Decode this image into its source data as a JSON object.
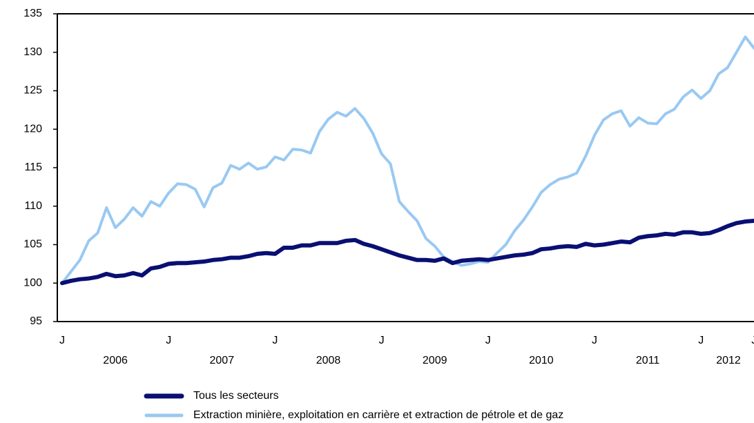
{
  "chart_data": {
    "type": "line",
    "categories": [
      "J",
      null,
      null,
      null,
      null,
      null,
      null,
      null,
      null,
      null,
      null,
      null,
      "J",
      null,
      null,
      null,
      null,
      null,
      null,
      null,
      null,
      null,
      null,
      null,
      "J",
      null,
      null,
      null,
      null,
      null,
      null,
      null,
      null,
      null,
      null,
      null,
      "J",
      null,
      null,
      null,
      null,
      null,
      null,
      null,
      null,
      null,
      null,
      null,
      "J",
      null,
      null,
      null,
      null,
      null,
      null,
      null,
      null,
      null,
      null,
      null,
      "J",
      null,
      null,
      null,
      null,
      null,
      null,
      null,
      null,
      null,
      null,
      null,
      "J",
      null,
      null,
      null,
      null,
      null,
      "J"
    ],
    "year_labels": [
      "2006",
      "2007",
      "2008",
      "2009",
      "2010",
      "2011",
      "2012"
    ],
    "series": [
      {
        "name": "Tous les secteurs",
        "color": "#0a0f73",
        "width": 6,
        "values": [
          100,
          100.3,
          100.5,
          100.6,
          100.8,
          101.2,
          100.9,
          101,
          101.3,
          101,
          101.9,
          102.1,
          102.5,
          102.6,
          102.6,
          102.7,
          102.8,
          103,
          103.1,
          103.3,
          103.3,
          103.5,
          103.8,
          103.9,
          103.8,
          104.6,
          104.6,
          104.9,
          104.9,
          105.2,
          105.2,
          105.2,
          105.5,
          105.6,
          105.1,
          104.8,
          104.4,
          104,
          103.6,
          103.3,
          103,
          103,
          102.9,
          103.2,
          102.6,
          102.9,
          103,
          103.1,
          103,
          103.2,
          103.4,
          103.6,
          103.7,
          103.9,
          104.4,
          104.5,
          104.7,
          104.8,
          104.7,
          105.1,
          104.9,
          105,
          105.2,
          105.4,
          105.3,
          105.9,
          106.1,
          106.2,
          106.4,
          106.3,
          106.6,
          106.6,
          106.4,
          106.5,
          106.9,
          107.4,
          107.8,
          108,
          108.1
        ]
      },
      {
        "name": "Extraction minière, exploitation en carrière et extraction de pétrole et de gaz",
        "color": "#99c9f2",
        "width": 4,
        "values": [
          100,
          101.5,
          103,
          105.5,
          106.5,
          109.8,
          107.2,
          108.3,
          109.8,
          108.7,
          110.6,
          110,
          111.7,
          112.9,
          112.8,
          112.2,
          109.9,
          112.4,
          113,
          115.3,
          114.8,
          115.6,
          114.8,
          115.1,
          116.4,
          116,
          117.4,
          117.3,
          116.9,
          119.7,
          121.3,
          122.2,
          121.7,
          122.7,
          121.4,
          119.5,
          116.8,
          115.5,
          110.6,
          109.3,
          108.1,
          105.8,
          104.8,
          103.4,
          102.8,
          102.3,
          102.5,
          102.8,
          102.7,
          103.9,
          105,
          106.8,
          108.2,
          109.9,
          111.8,
          112.8,
          113.5,
          113.8,
          114.3,
          116.5,
          119.2,
          121.2,
          122,
          122.4,
          120.4,
          121.5,
          120.8,
          120.7,
          122,
          122.6,
          124.2,
          125.1,
          124,
          125,
          127.2,
          128,
          130,
          132,
          130.5
        ]
      }
    ],
    "ylim": [
      95,
      135
    ],
    "yticks": [
      95,
      100,
      105,
      110,
      115,
      120,
      125,
      130,
      135
    ]
  }
}
